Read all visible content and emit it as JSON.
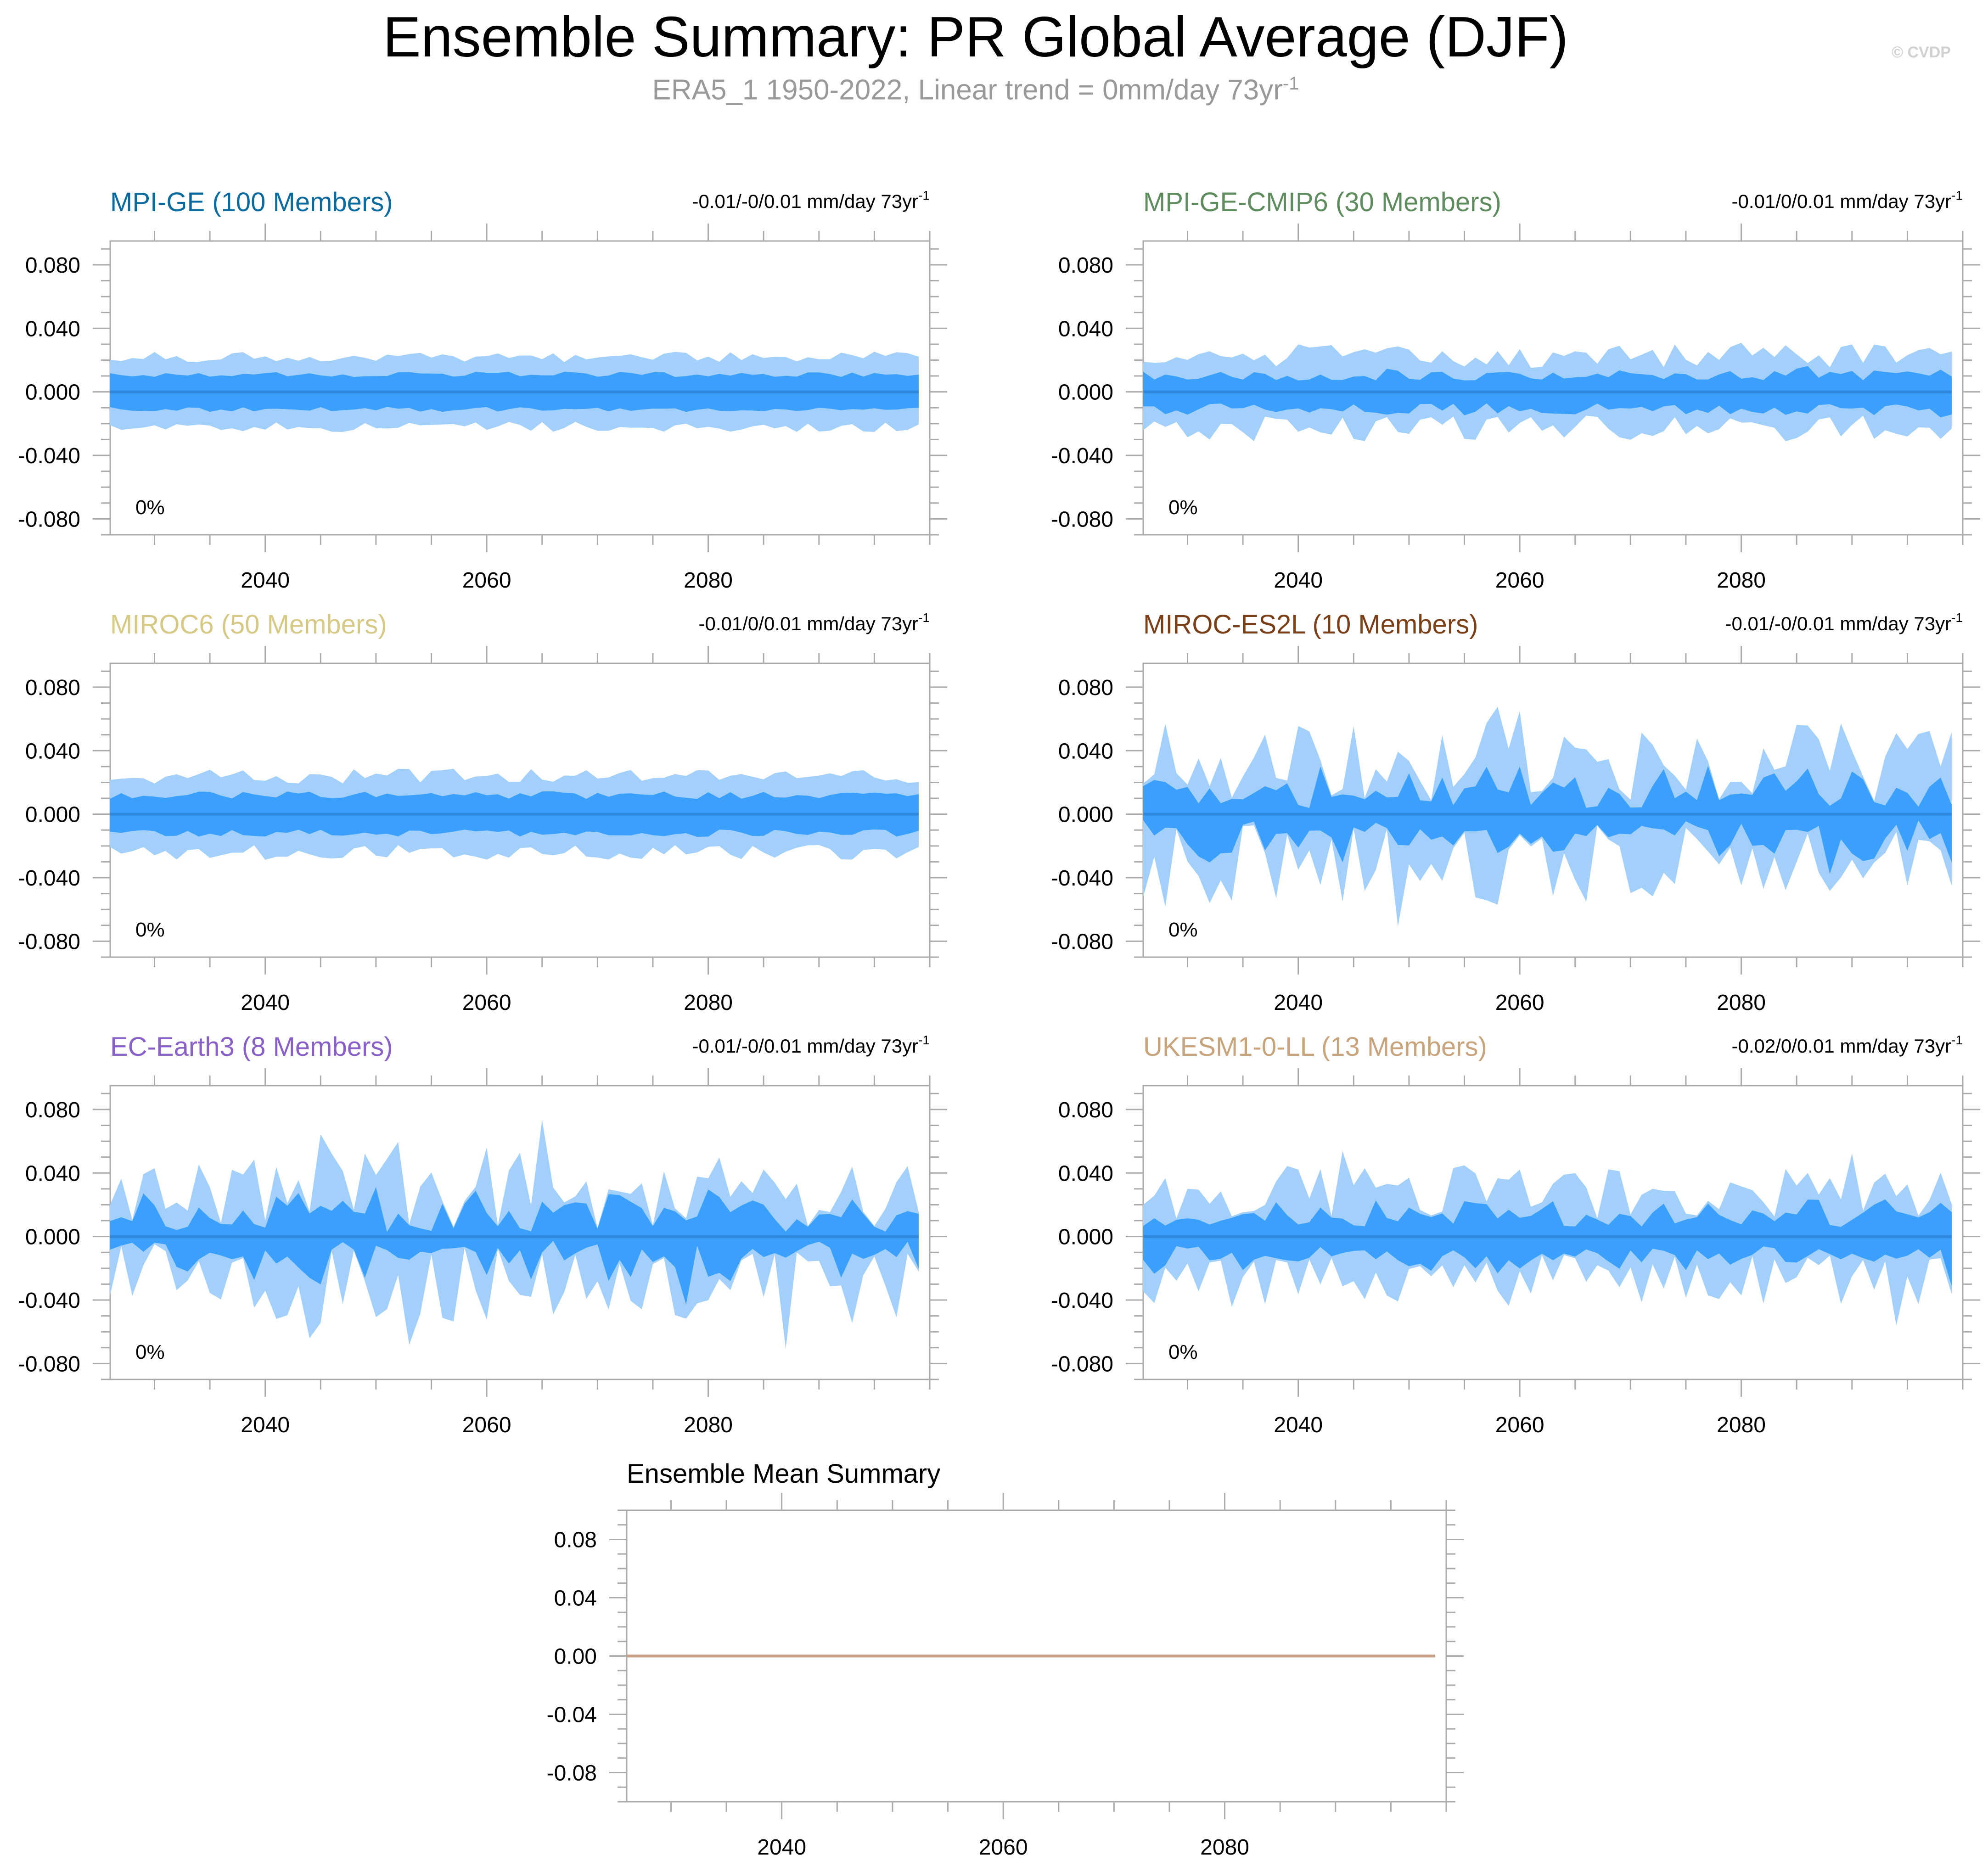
{
  "figure": {
    "title": "Ensemble Summary: PR Global Average (DJF)",
    "subtitle_main": "ERA5_1 1950-2022, Linear trend = 0mm/day 73yr",
    "subtitle_sup": "-1",
    "watermark": "© CVDP"
  },
  "colors": {
    "outer_band": "#a3d0fb",
    "inner_band": "#3ba0fb",
    "ensemble_mean_line": "#2f86de",
    "summary_line": "#c8a084",
    "frame": "#aaaaaa"
  },
  "chart_data": [
    {
      "type": "area",
      "title": "MPI-GE (100 Members)",
      "title_color": "#0b6b9e",
      "trend_text": "-0.01/-0/0.01 mm/day 73yr",
      "trend_sup": "-1",
      "percent_label": "0%",
      "x_range": [
        2026,
        2100
      ],
      "ylim": [
        -0.09,
        0.095
      ],
      "yticks": [
        0.08,
        0.04,
        0.0,
        -0.04,
        -0.08
      ],
      "ytick_labels": [
        "0.080",
        "0.040",
        "0.000",
        "-0.040",
        "-0.080"
      ],
      "xticks": [
        2040,
        2060,
        2080
      ],
      "xtick_labels": [
        "2040",
        "2060",
        "2080"
      ],
      "years": [
        2026,
        2099
      ],
      "variability": 0.15,
      "outer_spread": 0.022,
      "inner_spread": 0.011,
      "seed": 11
    },
    {
      "type": "area",
      "title": "MPI-GE-CMIP6 (30 Members)",
      "title_color": "#5e8c5e",
      "trend_text": "-0.01/0/0.01 mm/day 73yr",
      "trend_sup": "-1",
      "percent_label": "0%",
      "x_range": [
        2026,
        2100
      ],
      "ylim": [
        -0.09,
        0.095
      ],
      "yticks": [
        0.08,
        0.04,
        0.0,
        -0.04,
        -0.08
      ],
      "ytick_labels": [
        "0.080",
        "0.040",
        "0.000",
        "-0.040",
        "-0.080"
      ],
      "xticks": [
        2040,
        2060,
        2080
      ],
      "xtick_labels": [
        "2040",
        "2060",
        "2080"
      ],
      "years": [
        2026,
        2099
      ],
      "variability": 0.35,
      "outer_spread": 0.023,
      "inner_spread": 0.011,
      "seed": 23
    },
    {
      "type": "area",
      "title": "MIROC6 (50 Members)",
      "title_color": "#d6c985",
      "trend_text": "-0.01/0/0.01 mm/day 73yr",
      "trend_sup": "-1",
      "percent_label": "0%",
      "x_range": [
        2026,
        2100
      ],
      "ylim": [
        -0.09,
        0.095
      ],
      "yticks": [
        0.08,
        0.04,
        0.0,
        -0.04,
        -0.08
      ],
      "ytick_labels": [
        "0.080",
        "0.040",
        "0.000",
        "-0.040",
        "-0.080"
      ],
      "xticks": [
        2040,
        2060,
        2080
      ],
      "xtick_labels": [
        "2040",
        "2060",
        "2080"
      ],
      "years": [
        2026,
        2099
      ],
      "variability": 0.2,
      "outer_spread": 0.024,
      "inner_spread": 0.012,
      "seed": 37
    },
    {
      "type": "area",
      "title": "MIROC-ES2L (10 Members)",
      "title_color": "#7a3f16",
      "trend_text": "-0.01/-0/0.01 mm/day 73yr",
      "trend_sup": "-1",
      "percent_label": "0%",
      "x_range": [
        2026,
        2100
      ],
      "ylim": [
        -0.09,
        0.095
      ],
      "yticks": [
        0.08,
        0.04,
        0.0,
        -0.04,
        -0.08
      ],
      "ytick_labels": [
        "0.080",
        "0.040",
        "0.000",
        "-0.040",
        "-0.080"
      ],
      "xticks": [
        2040,
        2060,
        2080
      ],
      "xtick_labels": [
        "2040",
        "2060",
        "2080"
      ],
      "years": [
        2026,
        2099
      ],
      "variability": 0.8,
      "outer_spread": 0.032,
      "inner_spread": 0.017,
      "seed": 41
    },
    {
      "type": "area",
      "title": "EC-Earth3 (8 Members)",
      "title_color": "#8860c8",
      "trend_text": "-0.01/-0/0.01 mm/day 73yr",
      "trend_sup": "-1",
      "percent_label": "0%",
      "x_range": [
        2026,
        2100
      ],
      "ylim": [
        -0.09,
        0.095
      ],
      "yticks": [
        0.08,
        0.04,
        0.0,
        -0.04,
        -0.08
      ],
      "ytick_labels": [
        "0.080",
        "0.040",
        "0.000",
        "-0.040",
        "-0.080"
      ],
      "xticks": [
        2040,
        2060,
        2080
      ],
      "xtick_labels": [
        "2040",
        "2060",
        "2080"
      ],
      "years": [
        2026,
        2099
      ],
      "variability": 0.85,
      "outer_spread": 0.03,
      "inner_spread": 0.017,
      "seed": 53
    },
    {
      "type": "area",
      "title": "UKESM1-0-LL (13 Members)",
      "title_color": "#c8a47c",
      "trend_text": "-0.02/0/0.01 mm/day 73yr",
      "trend_sup": "-1",
      "percent_label": "0%",
      "x_range": [
        2026,
        2100
      ],
      "ylim": [
        -0.09,
        0.095
      ],
      "yticks": [
        0.08,
        0.04,
        0.0,
        -0.04,
        -0.08
      ],
      "ytick_labels": [
        "0.080",
        "0.040",
        "0.000",
        "-0.040",
        "-0.080"
      ],
      "xticks": [
        2040,
        2060,
        2080
      ],
      "xtick_labels": [
        "2040",
        "2060",
        "2080"
      ],
      "years": [
        2026,
        2099
      ],
      "variability": 0.6,
      "outer_spread": 0.028,
      "inner_spread": 0.015,
      "seed": 67
    },
    {
      "type": "line",
      "title": "Ensemble Mean Summary",
      "title_color": "#000000",
      "x_range": [
        2026,
        2100
      ],
      "ylim": [
        -0.1,
        0.1
      ],
      "yticks": [
        0.08,
        0.04,
        0.0,
        -0.04,
        -0.08
      ],
      "ytick_labels": [
        "0.08",
        "0.04",
        "0.00",
        "-0.04",
        "-0.08"
      ],
      "xticks": [
        2040,
        2060,
        2080
      ],
      "xtick_labels": [
        "2040",
        "2060",
        "2080"
      ],
      "x": [
        2026,
        2099
      ],
      "y": [
        0.0,
        0.0
      ]
    }
  ]
}
